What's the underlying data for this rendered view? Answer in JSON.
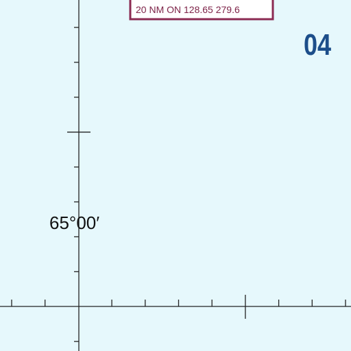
{
  "frequency_box": {
    "line": "20 NM ON 128.65  279.6"
  },
  "sector_label": "04",
  "longitude_label": "65°00′"
}
